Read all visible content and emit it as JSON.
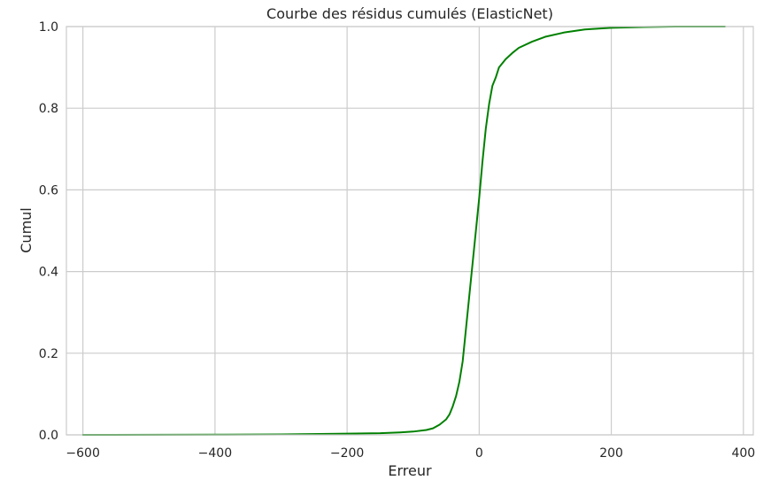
{
  "chart_data": {
    "type": "line",
    "title": "Courbe des résidus cumulés (ElasticNet)",
    "xlabel": "Erreur",
    "ylabel": "Cumul",
    "xlim": [
      -625,
      415
    ],
    "ylim": [
      0,
      1
    ],
    "x_ticks": [
      -600,
      -400,
      -200,
      0,
      200,
      400
    ],
    "x_tick_labels": [
      "−600",
      "−400",
      "−200",
      "0",
      "200",
      "400"
    ],
    "y_ticks": [
      0,
      0.2,
      0.4,
      0.6,
      0.8,
      1.0
    ],
    "y_tick_labels": [
      "0.0",
      "0.2",
      "0.4",
      "0.6",
      "0.8",
      "1.0"
    ],
    "grid": true,
    "colors": {
      "line": "#008000",
      "grid": "#cccccc",
      "spine": "#cccccc"
    },
    "series": [
      {
        "points": [
          [
            -600,
            0.0
          ],
          [
            -400,
            0.0005
          ],
          [
            -300,
            0.001
          ],
          [
            -200,
            0.003
          ],
          [
            -150,
            0.004
          ],
          [
            -120,
            0.006
          ],
          [
            -100,
            0.008
          ],
          [
            -80,
            0.012
          ],
          [
            -70,
            0.016
          ],
          [
            -60,
            0.025
          ],
          [
            -50,
            0.038
          ],
          [
            -45,
            0.05
          ],
          [
            -40,
            0.07
          ],
          [
            -35,
            0.095
          ],
          [
            -30,
            0.13
          ],
          [
            -25,
            0.18
          ],
          [
            -20,
            0.26
          ],
          [
            -15,
            0.34
          ],
          [
            -10,
            0.42
          ],
          [
            -5,
            0.5
          ],
          [
            0,
            0.58
          ],
          [
            5,
            0.67
          ],
          [
            10,
            0.75
          ],
          [
            15,
            0.81
          ],
          [
            20,
            0.855
          ],
          [
            25,
            0.875
          ],
          [
            30,
            0.9
          ],
          [
            40,
            0.92
          ],
          [
            50,
            0.935
          ],
          [
            60,
            0.948
          ],
          [
            80,
            0.963
          ],
          [
            100,
            0.975
          ],
          [
            130,
            0.986
          ],
          [
            160,
            0.993
          ],
          [
            200,
            0.997
          ],
          [
            250,
            0.999
          ],
          [
            300,
            1.0
          ],
          [
            372,
            1.0
          ]
        ]
      }
    ]
  }
}
